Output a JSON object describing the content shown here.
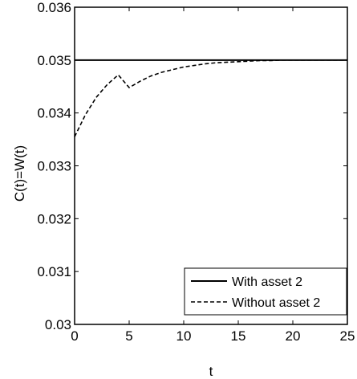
{
  "chart_data": {
    "type": "line",
    "title": "",
    "xlabel": "t",
    "ylabel": "C(t)=W(t)",
    "xlim": [
      0,
      25
    ],
    "ylim": [
      0.03,
      0.036
    ],
    "x_ticks": [
      "0",
      "5",
      "10",
      "15",
      "20",
      "25"
    ],
    "y_ticks": [
      "0.03",
      "0.031",
      "0.032",
      "0.033",
      "0.034",
      "0.035",
      "0.036"
    ],
    "x_tick_values": [
      0,
      5,
      10,
      15,
      20,
      25
    ],
    "y_tick_values": [
      0.03,
      0.031,
      0.032,
      0.033,
      0.034,
      0.035,
      0.036
    ],
    "grid": false,
    "legend_position": "bottom-right",
    "series": [
      {
        "name": "With asset 2",
        "style": "solid",
        "color": "#000000",
        "x": [
          0,
          5,
          10,
          15,
          20,
          25
        ],
        "y": [
          0.035,
          0.035,
          0.035,
          0.035,
          0.035,
          0.035
        ]
      },
      {
        "name": "Without asset 2",
        "style": "dashed",
        "color": "#000000",
        "x": [
          0,
          1,
          2,
          3,
          4,
          5,
          6,
          7,
          8,
          9,
          10,
          11,
          12,
          13,
          14,
          15,
          16,
          17,
          18,
          19,
          20,
          21,
          22,
          23,
          24,
          25
        ],
        "y": [
          0.03355,
          0.03397,
          0.0343,
          0.03454,
          0.03472,
          0.03448,
          0.0346,
          0.0347,
          0.03477,
          0.03482,
          0.03487,
          0.0349,
          0.03493,
          0.03495,
          0.03496,
          0.03497,
          0.03498,
          0.03499,
          0.03499,
          0.035,
          0.035,
          0.035,
          0.035,
          0.035,
          0.035,
          0.035
        ]
      }
    ]
  }
}
